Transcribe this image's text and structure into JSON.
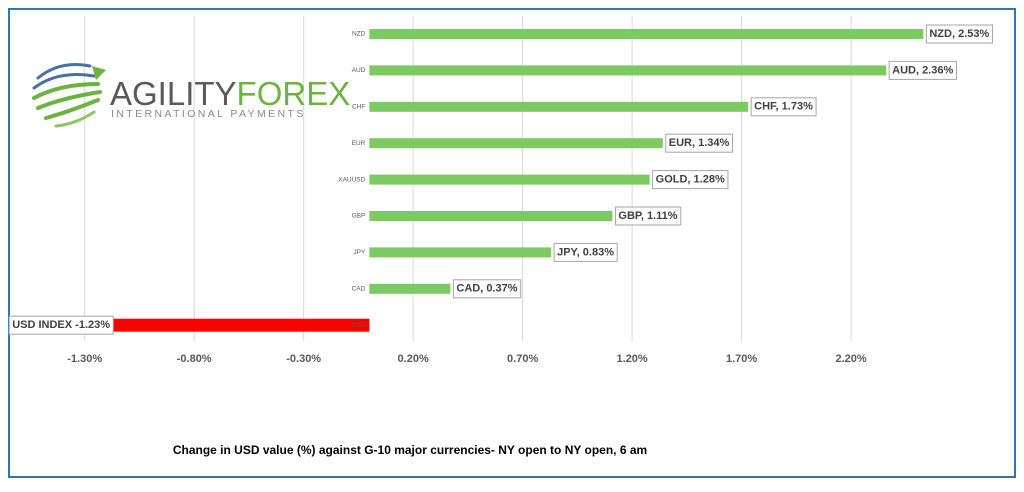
{
  "chart_data": {
    "type": "hbar",
    "title": "Change in  USD value (%)  against  G-10 major currencies-  NY open to  NY open, 6 am",
    "categories": [
      "NZD",
      "AUD",
      "CHF",
      "EUR",
      "XAUUSD",
      "GBP",
      "JPY",
      "CAD",
      "USD"
    ],
    "values": [
      2.53,
      2.36,
      1.73,
      1.34,
      1.28,
      1.11,
      0.83,
      0.37,
      -1.23
    ],
    "value_labels": [
      "NZD, 2.53%",
      "AUD, 2.36%",
      "CHF, 1.73%",
      "EUR, 1.34%",
      "GOLD, 1.28%",
      "GBP, 1.11%",
      "JPY, 0.83%",
      "CAD, 0.37%",
      "USD INDEX -1.23%"
    ],
    "positive_color": "#7dc962",
    "negative_color": "#ff0000",
    "xlim": [
      -1.6,
      2.88
    ],
    "xticks": [
      {
        "value": -1.3,
        "label": "-1.30%"
      },
      {
        "value": -0.8,
        "label": "-0.80%"
      },
      {
        "value": -0.3,
        "label": "-0.30%"
      },
      {
        "value": 0.2,
        "label": "0.20%"
      },
      {
        "value": 0.7,
        "label": "0.70%"
      },
      {
        "value": 1.2,
        "label": "1.20%"
      },
      {
        "value": 1.7,
        "label": "1.70%"
      },
      {
        "value": 2.2,
        "label": "2.20%"
      }
    ],
    "grid": true
  },
  "logo": {
    "name_part1": "AGILITY",
    "name_part2": "FOREX",
    "tagline": "INTERNATIONAL PAYMENTS"
  }
}
